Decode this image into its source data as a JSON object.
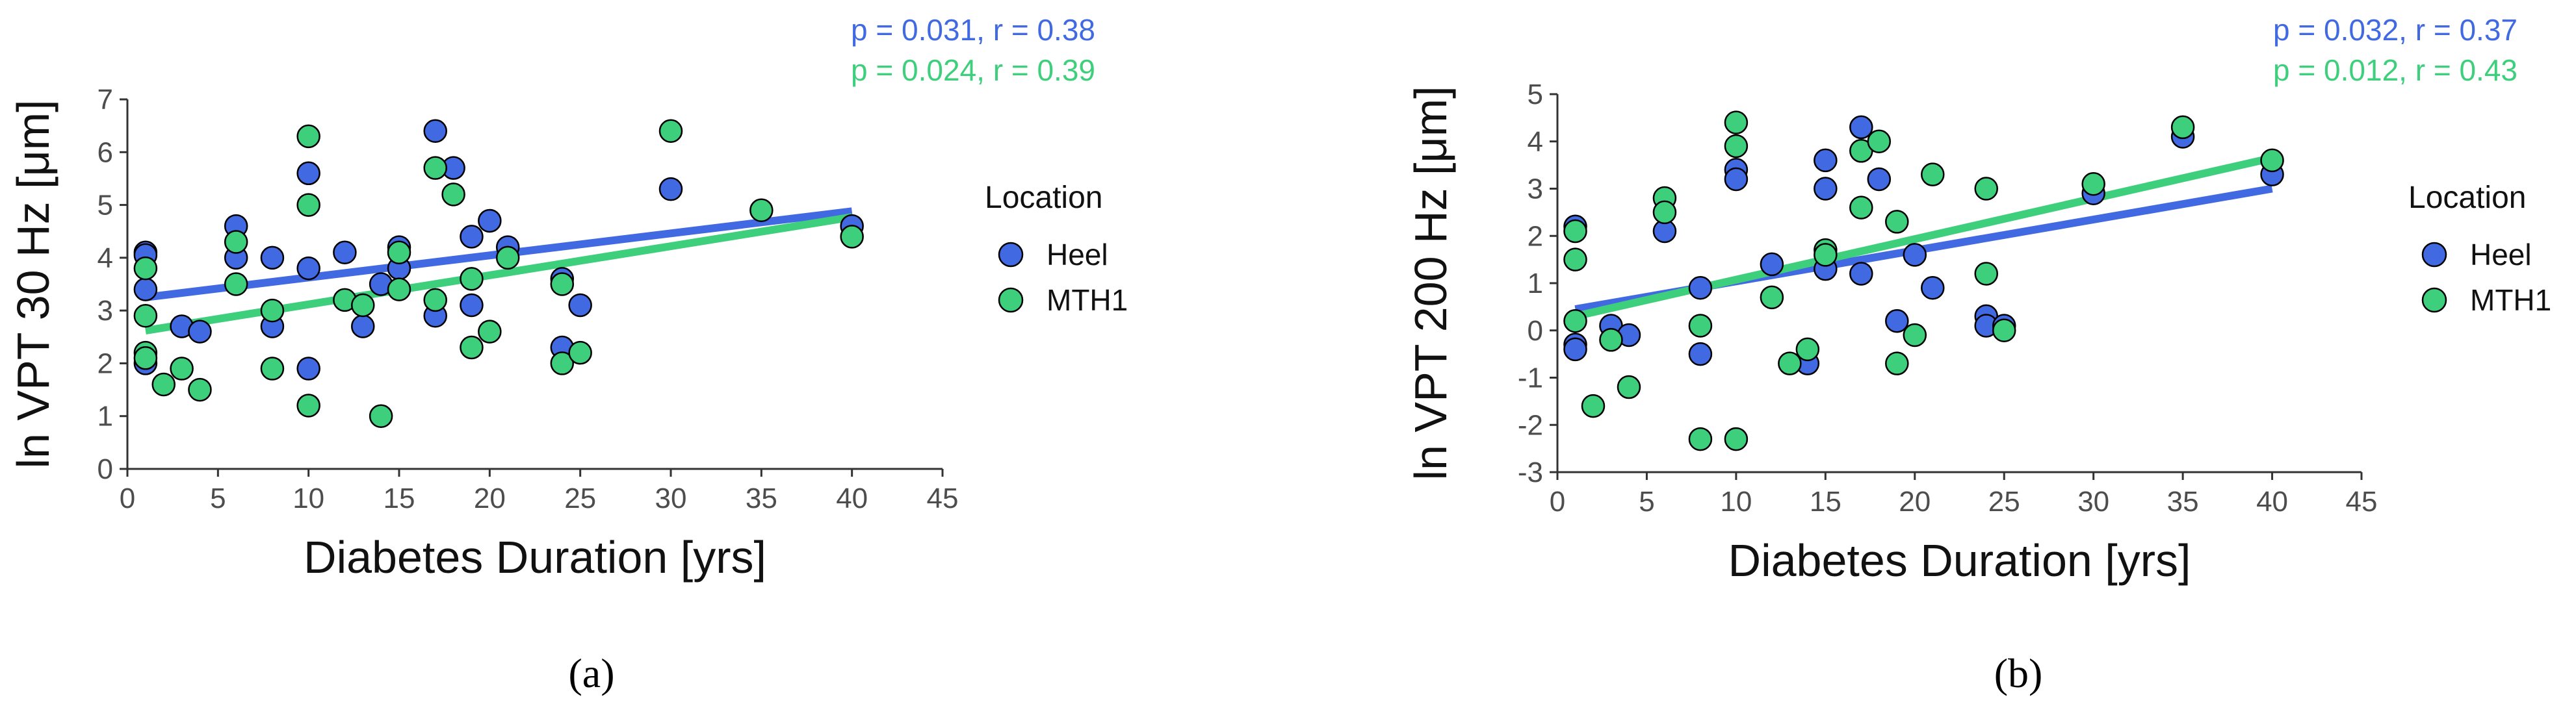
{
  "chart_data": [
    {
      "type": "scatter",
      "panel_label": "(a)",
      "xlabel": "Diabetes Duration [yrs]",
      "ylabel": "ln VPT 30 Hz [μm]",
      "xlim": [
        0,
        45
      ],
      "ylim": [
        0,
        7
      ],
      "xticks": [
        "0",
        "5",
        "10",
        "15",
        "20",
        "25",
        "30",
        "35",
        "40",
        "45"
      ],
      "yticks": [
        "0",
        "1",
        "2",
        "3",
        "4",
        "5",
        "6",
        "7"
      ],
      "legend_title": "Location",
      "grid": false,
      "stats": [
        {
          "text": "p = 0.031, r = 0.38",
          "series": "Heel"
        },
        {
          "text": "p = 0.024, r = 0.39",
          "series": "MTH1"
        }
      ],
      "series": [
        {
          "name": "Heel",
          "color": "#4169e1",
          "fit": [
            [
              1,
              3.25
            ],
            [
              40,
              4.88
            ]
          ],
          "points": [
            [
              1,
              2.0
            ],
            [
              1,
              4.1
            ],
            [
              1,
              4.05
            ],
            [
              1,
              3.4
            ],
            [
              3,
              2.7
            ],
            [
              4,
              2.6
            ],
            [
              6,
              4.6
            ],
            [
              6,
              4.0
            ],
            [
              8,
              4.0
            ],
            [
              8,
              2.7
            ],
            [
              10,
              5.6
            ],
            [
              10,
              3.8
            ],
            [
              10,
              1.9
            ],
            [
              12,
              4.1
            ],
            [
              13,
              2.7
            ],
            [
              14,
              3.5
            ],
            [
              15,
              4.2
            ],
            [
              15,
              3.8
            ],
            [
              17,
              6.4
            ],
            [
              17,
              2.9
            ],
            [
              18,
              5.7
            ],
            [
              19,
              4.4
            ],
            [
              19,
              3.1
            ],
            [
              20,
              4.7
            ],
            [
              21,
              4.2
            ],
            [
              24,
              3.6
            ],
            [
              24,
              2.3
            ],
            [
              25,
              3.1
            ],
            [
              30,
              5.3
            ],
            [
              40,
              4.6
            ]
          ]
        },
        {
          "name": "MTH1",
          "color": "#3ecf7d",
          "fit": [
            [
              1,
              2.62
            ],
            [
              40,
              4.77
            ]
          ],
          "points": [
            [
              1,
              3.8
            ],
            [
              1,
              2.9
            ],
            [
              1,
              2.2
            ],
            [
              1,
              2.1
            ],
            [
              2,
              1.6
            ],
            [
              3,
              1.9
            ],
            [
              4,
              1.5
            ],
            [
              6,
              4.3
            ],
            [
              6,
              3.5
            ],
            [
              8,
              3.0
            ],
            [
              8,
              1.9
            ],
            [
              10,
              6.3
            ],
            [
              10,
              5.0
            ],
            [
              10,
              1.2
            ],
            [
              12,
              3.2
            ],
            [
              13,
              3.1
            ],
            [
              14,
              1.0
            ],
            [
              15,
              4.1
            ],
            [
              15,
              3.4
            ],
            [
              17,
              5.7
            ],
            [
              17,
              3.2
            ],
            [
              18,
              5.2
            ],
            [
              19,
              3.6
            ],
            [
              19,
              2.3
            ],
            [
              20,
              2.6
            ],
            [
              21,
              4.0
            ],
            [
              24,
              3.5
            ],
            [
              24,
              2.0
            ],
            [
              25,
              2.2
            ],
            [
              30,
              6.4
            ],
            [
              35,
              4.9
            ],
            [
              40,
              4.4
            ]
          ]
        }
      ]
    },
    {
      "type": "scatter",
      "panel_label": "(b)",
      "xlabel": "Diabetes Duration [yrs]",
      "ylabel": "ln VPT 200 Hz [μm]",
      "xlim": [
        0,
        45
      ],
      "ylim": [
        -3,
        5
      ],
      "xticks": [
        "0",
        "5",
        "10",
        "15",
        "20",
        "25",
        "30",
        "35",
        "40",
        "45"
      ],
      "yticks": [
        "-3",
        "-2",
        "-1",
        "0",
        "1",
        "2",
        "3",
        "4",
        "5"
      ],
      "legend_title": "Location",
      "grid": false,
      "stats": [
        {
          "text": "p = 0.032, r = 0.37",
          "series": "Heel"
        },
        {
          "text": "p = 0.012, r = 0.43",
          "series": "MTH1"
        }
      ],
      "series": [
        {
          "name": "Heel",
          "color": "#4169e1",
          "fit": [
            [
              1,
              0.45
            ],
            [
              40,
              3.0
            ]
          ],
          "points": [
            [
              1,
              2.2
            ],
            [
              1,
              -0.3
            ],
            [
              1,
              -0.4
            ],
            [
              3,
              0.1
            ],
            [
              4,
              -0.1
            ],
            [
              6,
              2.1
            ],
            [
              8,
              0.9
            ],
            [
              8,
              -0.5
            ],
            [
              10,
              3.4
            ],
            [
              10,
              3.2
            ],
            [
              12,
              1.4
            ],
            [
              14,
              -0.7
            ],
            [
              15,
              3.6
            ],
            [
              15,
              3.0
            ],
            [
              15,
              1.3
            ],
            [
              17,
              4.3
            ],
            [
              17,
              1.2
            ],
            [
              18,
              3.2
            ],
            [
              19,
              0.2
            ],
            [
              20,
              1.6
            ],
            [
              21,
              0.9
            ],
            [
              24,
              0.3
            ],
            [
              24,
              0.1
            ],
            [
              25,
              0.1
            ],
            [
              30,
              2.9
            ],
            [
              35,
              4.1
            ],
            [
              40,
              3.3
            ]
          ]
        },
        {
          "name": "MTH1",
          "color": "#3ecf7d",
          "fit": [
            [
              1,
              0.3
            ],
            [
              40,
              3.65
            ]
          ],
          "points": [
            [
              1,
              2.1
            ],
            [
              1,
              1.5
            ],
            [
              1,
              0.2
            ],
            [
              2,
              -1.6
            ],
            [
              3,
              -0.2
            ],
            [
              4,
              -1.2
            ],
            [
              6,
              2.8
            ],
            [
              6,
              2.5
            ],
            [
              8,
              -2.3
            ],
            [
              8,
              0.1
            ],
            [
              10,
              4.4
            ],
            [
              10,
              3.9
            ],
            [
              10,
              -2.3
            ],
            [
              12,
              0.7
            ],
            [
              13,
              -0.7
            ],
            [
              14,
              -0.4
            ],
            [
              15,
              1.7
            ],
            [
              15,
              1.6
            ],
            [
              17,
              3.8
            ],
            [
              17,
              2.6
            ],
            [
              18,
              4.0
            ],
            [
              19,
              2.3
            ],
            [
              19,
              -0.7
            ],
            [
              20,
              -0.1
            ],
            [
              21,
              3.3
            ],
            [
              24,
              3.0
            ],
            [
              24,
              1.2
            ],
            [
              25,
              0.0
            ],
            [
              30,
              3.1
            ],
            [
              35,
              4.3
            ],
            [
              40,
              3.6
            ]
          ]
        }
      ]
    }
  ]
}
